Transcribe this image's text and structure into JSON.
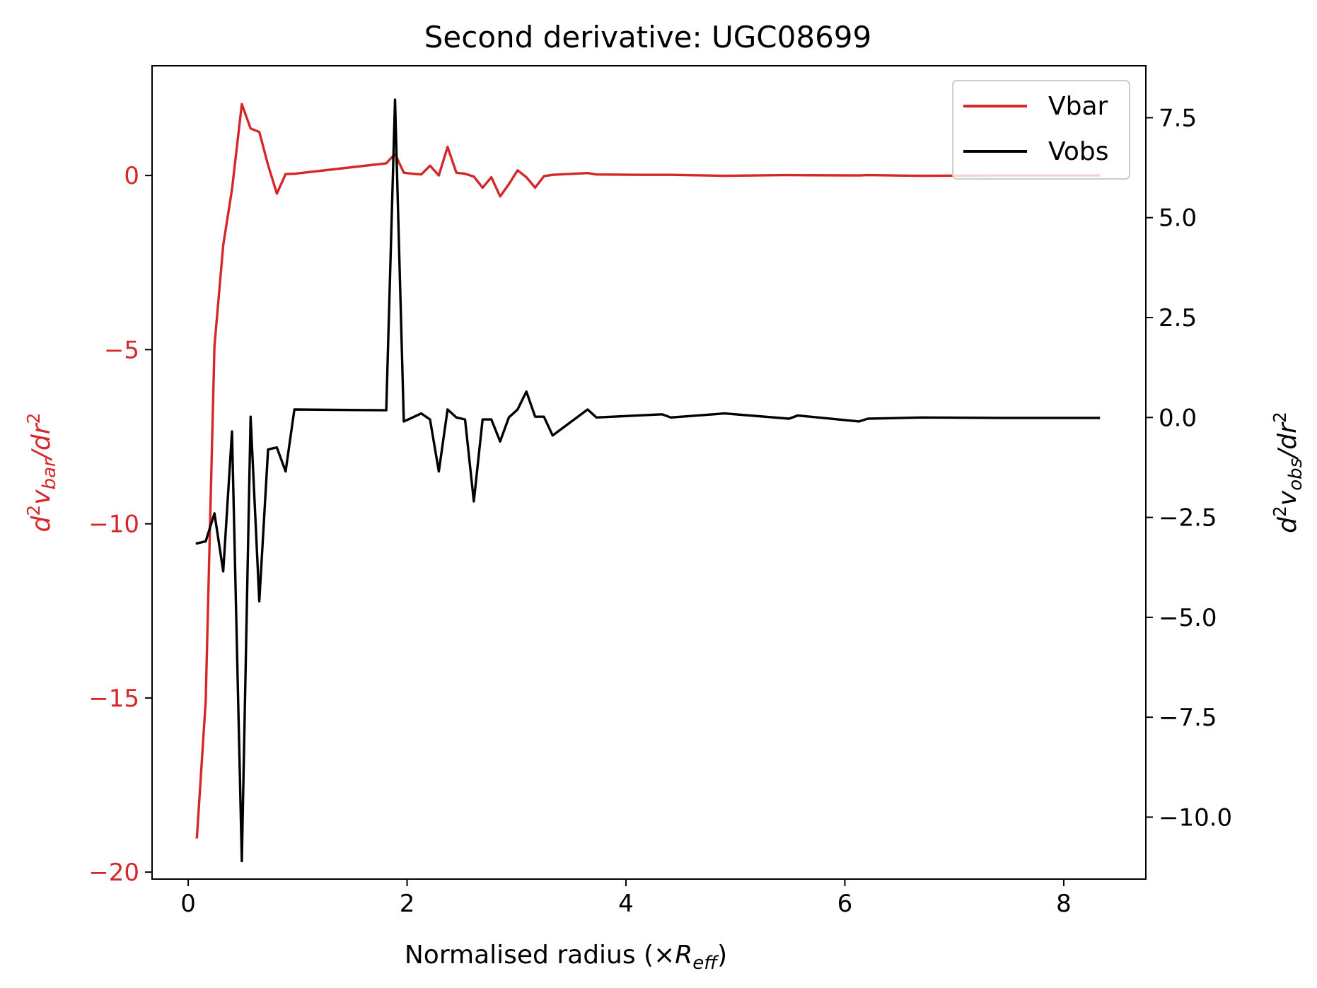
{
  "chart_data": {
    "type": "line",
    "title": "Second derivative: UGC08699",
    "xlabel": {
      "main": "Normalised radius (×",
      "sym": "R",
      "sub": "eff",
      "close": ")"
    },
    "ylabel_left": {
      "d": "d",
      "sup": "2",
      "v": "v",
      "sub": "bar",
      "mid": "/d",
      "r": "r",
      "sup2": "2"
    },
    "ylabel_right": {
      "d": "d",
      "sup": "2",
      "v": "v",
      "sub": "obs",
      "mid": "/d",
      "r": "r",
      "sup2": "2"
    },
    "xlim": [
      -0.33,
      8.75
    ],
    "ylim_left": [
      -20.2,
      3.15
    ],
    "ylim_right": [
      -11.55,
      8.8
    ],
    "xticks": [
      0,
      2,
      4,
      6,
      8
    ],
    "xtick_labels": [
      "0",
      "2",
      "4",
      "6",
      "8"
    ],
    "yticks_left": [
      0,
      -5,
      -10,
      -15,
      -20
    ],
    "ytick_labels_left": [
      "0",
      "−5",
      "−10",
      "−15",
      "−20"
    ],
    "yticks_right": [
      7.5,
      5.0,
      2.5,
      0.0,
      -2.5,
      -5.0,
      -7.5,
      -10.0
    ],
    "ytick_labels_right": [
      "7.5",
      "5.0",
      "2.5",
      "0.0",
      "−2.5",
      "−5.0",
      "−7.5",
      "−10.0"
    ],
    "legend": {
      "placement": "top-right",
      "entries": [
        "Vbar",
        "Vobs"
      ]
    },
    "grid": false,
    "colors": {
      "vbar": "#d62728",
      "vobs": "#000000",
      "axis": "#000000"
    },
    "series": [
      {
        "name": "Vbar",
        "axis": "left",
        "x": [
          0.08,
          0.16,
          0.24,
          0.32,
          0.4,
          0.49,
          0.57,
          0.65,
          0.73,
          0.81,
          0.89,
          0.97,
          1.81,
          1.89,
          1.97,
          2.05,
          2.13,
          2.21,
          2.29,
          2.37,
          2.45,
          2.53,
          2.61,
          2.69,
          2.77,
          2.85,
          2.93,
          3.01,
          3.09,
          3.17,
          3.25,
          3.33,
          3.65,
          3.73,
          4.17,
          4.41,
          4.9,
          5.45,
          6.13,
          6.21,
          6.7,
          7.4,
          8.32
        ],
        "y": [
          -19.0,
          -15.1,
          -4.9,
          -2.0,
          -0.4,
          2.05,
          1.35,
          1.25,
          0.3,
          -0.52,
          0.04,
          0.05,
          0.35,
          0.62,
          0.08,
          0.05,
          0.03,
          0.28,
          0.0,
          0.82,
          0.08,
          0.05,
          -0.03,
          -0.35,
          -0.05,
          -0.6,
          -0.25,
          0.15,
          -0.05,
          -0.35,
          -0.02,
          0.02,
          0.07,
          0.03,
          0.02,
          0.02,
          -0.01,
          0.01,
          0.0,
          0.01,
          -0.01,
          0.0,
          0.0
        ]
      },
      {
        "name": "Vobs",
        "axis": "right",
        "x": [
          0.08,
          0.16,
          0.24,
          0.32,
          0.4,
          0.49,
          0.57,
          0.65,
          0.73,
          0.81,
          0.89,
          0.97,
          1.81,
          1.89,
          1.97,
          2.05,
          2.13,
          2.21,
          2.29,
          2.37,
          2.45,
          2.53,
          2.61,
          2.69,
          2.77,
          2.85,
          2.93,
          3.01,
          3.09,
          3.17,
          3.25,
          3.33,
          3.65,
          3.73,
          4.33,
          4.41,
          4.9,
          5.49,
          5.57,
          6.13,
          6.21,
          6.7,
          7.4,
          8.32
        ],
        "y": [
          -3.15,
          -3.1,
          -2.4,
          -3.85,
          -0.35,
          -11.1,
          0.02,
          -4.6,
          -0.8,
          -0.75,
          -1.35,
          0.2,
          0.18,
          7.95,
          -0.1,
          0.0,
          0.1,
          -0.05,
          -1.35,
          0.2,
          0.0,
          -0.05,
          -2.1,
          -0.05,
          -0.05,
          -0.6,
          0.0,
          0.2,
          0.65,
          0.02,
          0.02,
          -0.45,
          0.2,
          0.0,
          0.08,
          0.0,
          0.1,
          -0.03,
          0.05,
          -0.1,
          -0.03,
          0.0,
          -0.01,
          -0.01
        ]
      }
    ]
  }
}
